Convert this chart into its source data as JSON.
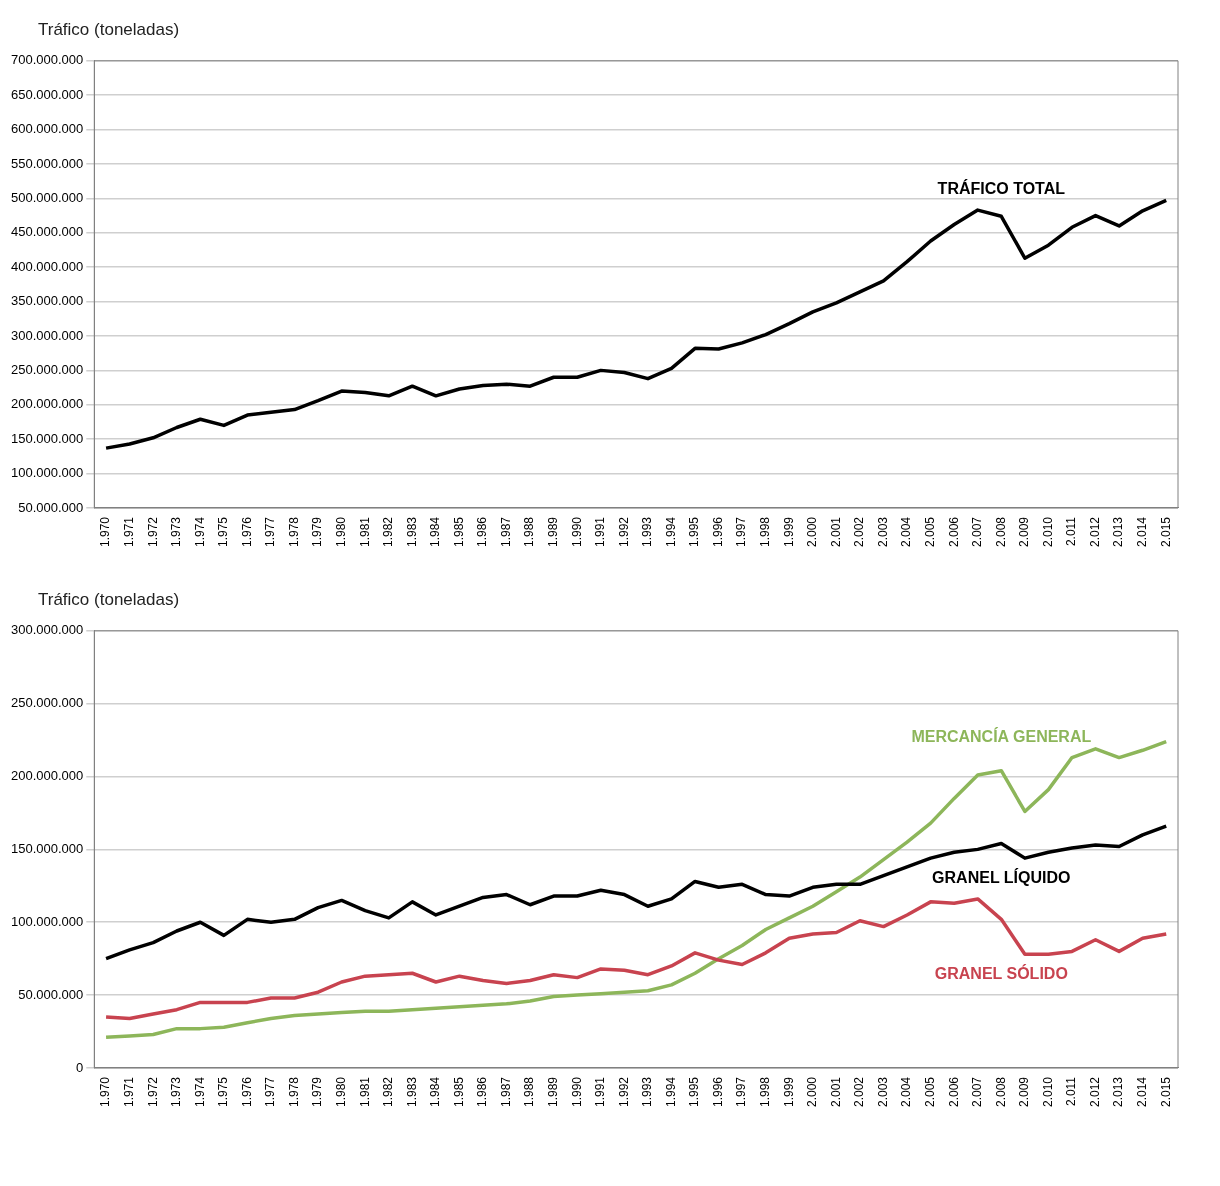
{
  "chart_data": [
    {
      "type": "line",
      "ylabel": "Tráfico (toneladas)",
      "categories": [
        "1.970",
        "1.971",
        "1.972",
        "1.973",
        "1.974",
        "1.975",
        "1.976",
        "1.977",
        "1.978",
        "1.979",
        "1.980",
        "1.981",
        "1.982",
        "1.983",
        "1.984",
        "1.985",
        "1.986",
        "1.987",
        "1.988",
        "1.989",
        "1.990",
        "1.991",
        "1.992",
        "1.993",
        "1.994",
        "1.995",
        "1.996",
        "1.997",
        "1.998",
        "1.999",
        "2.000",
        "2.001",
        "2.002",
        "2.003",
        "2.004",
        "2.005",
        "2.006",
        "2.007",
        "2.008",
        "2.009",
        "2.010",
        "2.011",
        "2.012",
        "2.013",
        "2.014",
        "2.015"
      ],
      "series": [
        {
          "name": "TRÁFICO TOTAL",
          "color": "#000000",
          "values": [
            137000000,
            143000000,
            152000000,
            167000000,
            179000000,
            170000000,
            185000000,
            189000000,
            193000000,
            206000000,
            220000000,
            218000000,
            213000000,
            227000000,
            213000000,
            223000000,
            228000000,
            230000000,
            227000000,
            240000000,
            240000000,
            250000000,
            247000000,
            238000000,
            253000000,
            282000000,
            281000000,
            290000000,
            302000000,
            318000000,
            335000000,
            348000000,
            364000000,
            380000000,
            408000000,
            438000000,
            462000000,
            483000000,
            474000000,
            413000000,
            432000000,
            458000000,
            475000000,
            460000000,
            482000000,
            497000000
          ]
        }
      ],
      "ylim": [
        50000000,
        700000000
      ],
      "yticks": [
        {
          "value": 50000000,
          "label": "50.000.000"
        },
        {
          "value": 100000000,
          "label": "100.000.000"
        },
        {
          "value": 150000000,
          "label": "150.000.000"
        },
        {
          "value": 200000000,
          "label": "200.000.000"
        },
        {
          "value": 250000000,
          "label": "250.000.000"
        },
        {
          "value": 300000000,
          "label": "300.000.000"
        },
        {
          "value": 350000000,
          "label": "350.000.000"
        },
        {
          "value": 400000000,
          "label": "400.000.000"
        },
        {
          "value": 450000000,
          "label": "450.000.000"
        },
        {
          "value": 500000000,
          "label": "500.000.000"
        },
        {
          "value": 550000000,
          "label": "550.000.000"
        },
        {
          "value": 600000000,
          "label": "600.000.000"
        },
        {
          "value": 650000000,
          "label": "650.000.000"
        },
        {
          "value": 700000000,
          "label": "700.000.000"
        }
      ],
      "grid": "y",
      "legend": false,
      "marker": "none",
      "line_style": "solid"
    },
    {
      "type": "line",
      "ylabel": "Tráfico (toneladas)",
      "categories": [
        "1.970",
        "1.971",
        "1.972",
        "1.973",
        "1.974",
        "1.975",
        "1.976",
        "1.977",
        "1.978",
        "1.979",
        "1.980",
        "1.981",
        "1.982",
        "1.983",
        "1.984",
        "1.985",
        "1.986",
        "1.987",
        "1.988",
        "1.989",
        "1.990",
        "1.991",
        "1.992",
        "1.993",
        "1.994",
        "1.995",
        "1.996",
        "1.997",
        "1.998",
        "1.999",
        "2.000",
        "2.001",
        "2.002",
        "2.003",
        "2.004",
        "2.005",
        "2.006",
        "2.007",
        "2.008",
        "2.009",
        "2.010",
        "2.011",
        "2.012",
        "2.013",
        "2.014",
        "2.015"
      ],
      "series": [
        {
          "name": "GRANEL LÍQUIDO",
          "color": "#000000",
          "values": [
            75000000,
            81000000,
            86000000,
            94000000,
            100000000,
            91000000,
            102000000,
            100000000,
            102000000,
            110000000,
            115000000,
            108000000,
            103000000,
            114000000,
            105000000,
            111000000,
            117000000,
            119000000,
            112000000,
            118000000,
            118000000,
            122000000,
            119000000,
            111000000,
            116000000,
            128000000,
            124000000,
            126000000,
            119000000,
            118000000,
            124000000,
            126000000,
            126000000,
            132000000,
            138000000,
            144000000,
            148000000,
            150000000,
            154000000,
            144000000,
            148000000,
            151000000,
            153000000,
            152000000,
            160000000,
            166000000
          ]
        },
        {
          "name": "GRANEL SÓLIDO",
          "color": "#c8434f",
          "values": [
            35000000,
            34000000,
            37000000,
            40000000,
            45000000,
            45000000,
            45000000,
            48000000,
            48000000,
            52000000,
            59000000,
            63000000,
            64000000,
            65000000,
            59000000,
            63000000,
            60000000,
            58000000,
            60000000,
            64000000,
            62000000,
            68000000,
            67000000,
            64000000,
            70000000,
            79000000,
            74000000,
            71000000,
            79000000,
            89000000,
            92000000,
            93000000,
            101000000,
            97000000,
            105000000,
            114000000,
            113000000,
            116000000,
            102000000,
            78000000,
            78000000,
            80000000,
            88000000,
            80000000,
            89000000,
            92000000
          ]
        },
        {
          "name": "MERCANCÍA GENERAL",
          "color": "#8db65a",
          "values": [
            21000000,
            22000000,
            23000000,
            27000000,
            27000000,
            28000000,
            31000000,
            34000000,
            36000000,
            37000000,
            38000000,
            39000000,
            39000000,
            40000000,
            41000000,
            42000000,
            43000000,
            44000000,
            46000000,
            49000000,
            50000000,
            51000000,
            52000000,
            53000000,
            57000000,
            65000000,
            75000000,
            84000000,
            95000000,
            103000000,
            111000000,
            121000000,
            131000000,
            143000000,
            155000000,
            168000000,
            185000000,
            201000000,
            204000000,
            176000000,
            191000000,
            213000000,
            219000000,
            213000000,
            218000000,
            224000000
          ]
        }
      ],
      "ylim": [
        0,
        300000000
      ],
      "yticks": [
        0,
        {
          "value": 50000000,
          "label": "50.000.000"
        },
        {
          "value": 100000000,
          "label": "100.000.000"
        },
        {
          "value": 150000000,
          "label": "150.000.000"
        },
        {
          "value": 200000000,
          "label": "200.000.000"
        },
        {
          "value": 250000000,
          "label": "250.000.000"
        },
        {
          "value": 300000000,
          "label": "300.000.000"
        }
      ],
      "grid": "y",
      "legend": false,
      "marker": "none",
      "line_style": "solid"
    }
  ]
}
